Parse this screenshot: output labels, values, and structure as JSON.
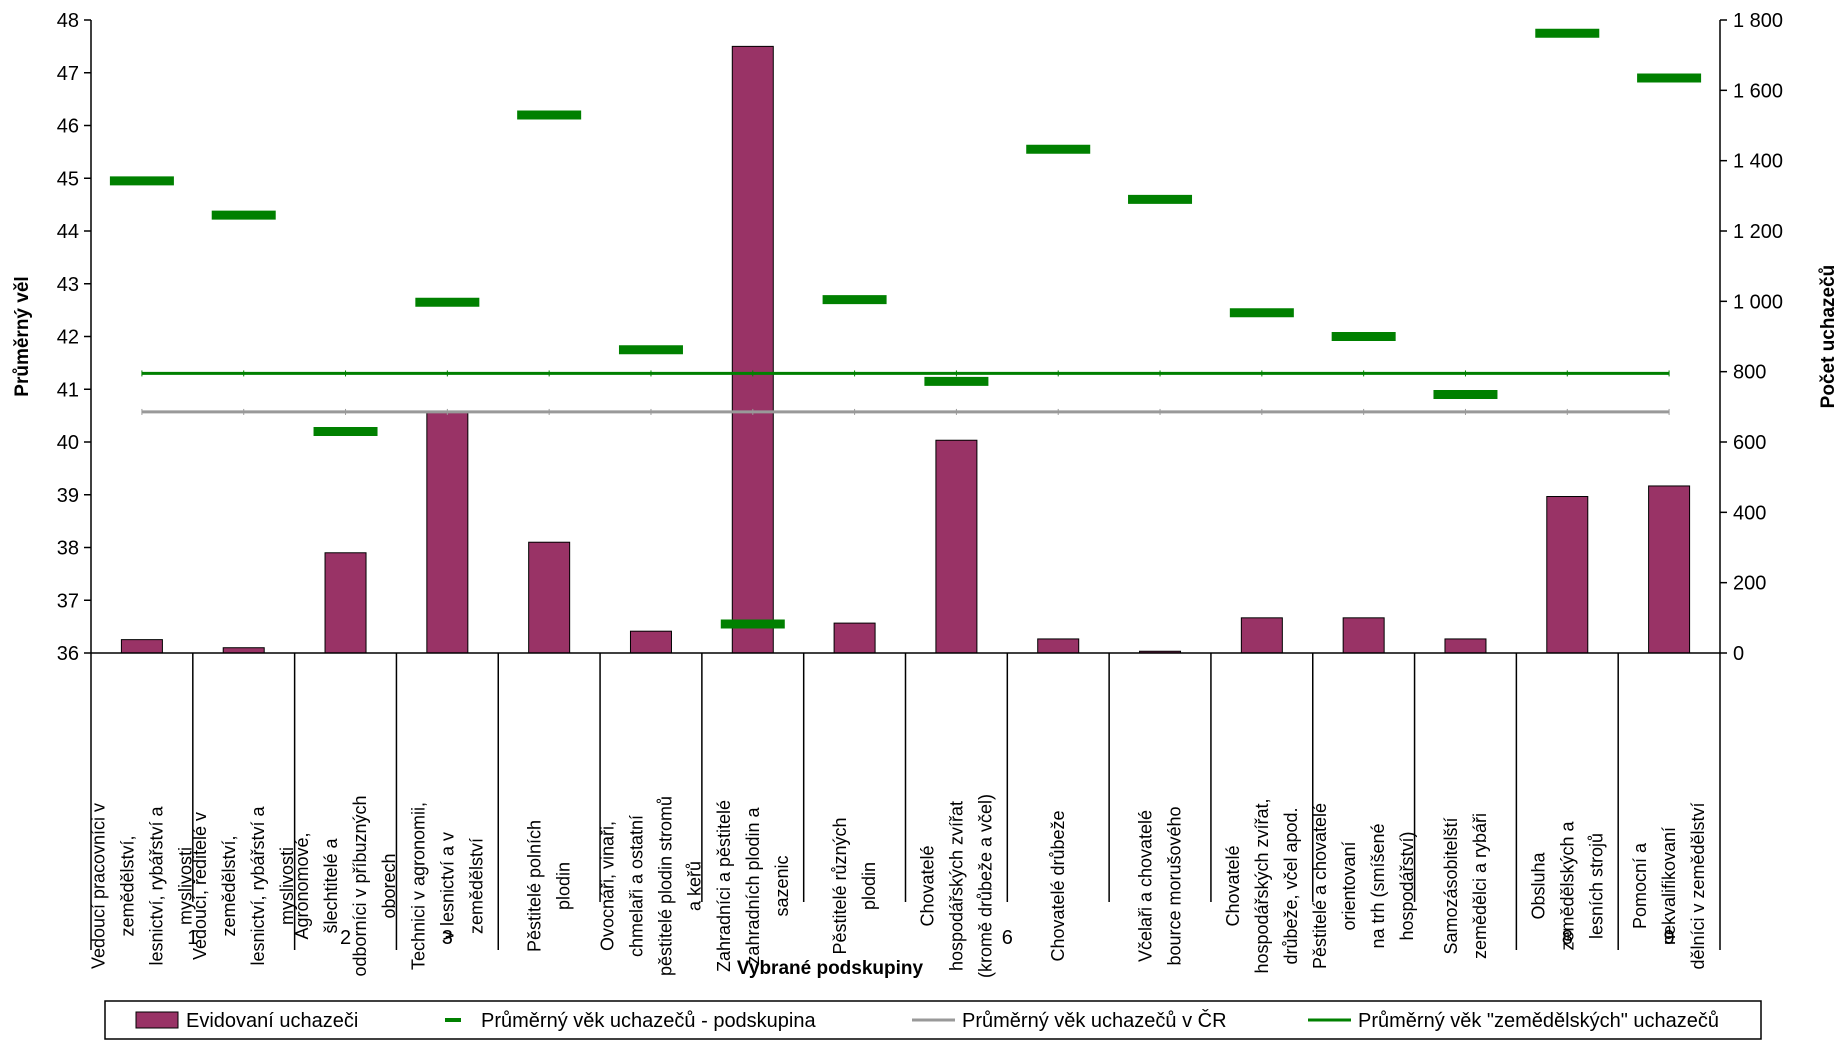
{
  "chart_data": {
    "type": "bar",
    "xlabel": "Vybrané podskupiny",
    "ylabel_left": "Průměrný věl",
    "ylabel_right": "Počet uchazečů",
    "ylim_left": [
      36,
      48
    ],
    "ylim_right": [
      0,
      1800
    ],
    "left_ticks": [
      "36",
      "37",
      "38",
      "39",
      "40",
      "41",
      "42",
      "43",
      "44",
      "45",
      "46",
      "47",
      "48"
    ],
    "right_ticks": [
      "0",
      "200",
      "400",
      "600",
      "800",
      "1 000",
      "1 200",
      "1 400",
      "1 600",
      "1 800"
    ],
    "categories": [
      [
        "Vedoucí pracovníci v",
        "zemědělství,",
        "lesnictví, rybářství a",
        "myslivosti"
      ],
      [
        "Vedoucí, ředitelé v",
        "zemědělství,",
        "lesnictví, rybářství a",
        "myslivosti"
      ],
      [
        "Agronomové,",
        "šlechtitelé a",
        "odborníci v příbuzných",
        "oborech"
      ],
      [
        "Technici v agronomii,",
        "v lesnictví a v",
        "zemědělství"
      ],
      [
        "Pěstitelé polních",
        "plodin"
      ],
      [
        "Ovocnáři, vinaři,",
        "chmelaři a ostatní",
        "pěstitelé plodin stromů",
        "a keřů"
      ],
      [
        "Zahradníci a pěstitelé",
        "zahradních plodin a",
        "sazenic"
      ],
      [
        "Pěstitelé různých",
        "plodin"
      ],
      [
        "Chovatelé",
        "hospodářských zvířat",
        "(kromě drůbeže a včel)"
      ],
      [
        "Chovatelé drůbeže"
      ],
      [
        "Včelaři a chovatelé",
        "bource morušového"
      ],
      [
        "Chovatelé",
        "hospodářských zvířat,",
        "drůbeže, včel apod."
      ],
      [
        "Pěstitelé a chovatelé",
        "orientovaní",
        "na trh (smíšené",
        "hospodářství)"
      ],
      [
        "Samozásobitelští",
        "zemědělci a rybáři"
      ],
      [
        "Obsluha",
        "zemědělských a",
        "lesních strojů"
      ],
      [
        "Pomocní a",
        "nekvalifikovaní",
        "dělníci v zemědělství"
      ]
    ],
    "groups": [
      {
        "label": "1",
        "start": 0,
        "end": 1
      },
      {
        "label": "2",
        "start": 2,
        "end": 2
      },
      {
        "label": "3",
        "start": 3,
        "end": 3
      },
      {
        "label": "6",
        "start": 4,
        "end": 13
      },
      {
        "label": "8",
        "start": 14,
        "end": 14
      },
      {
        "label": "9",
        "start": 15,
        "end": 15
      }
    ],
    "series": [
      {
        "name": "Evidovaní uchazeči",
        "kind": "bar",
        "axis": "right",
        "color": "#993366",
        "values": [
          38,
          15,
          285,
          685,
          315,
          62,
          1725,
          85,
          605,
          40,
          5,
          100,
          100,
          40,
          445,
          475
        ]
      },
      {
        "name": "Průměrný věk uchazečů - podskupina",
        "kind": "marker",
        "axis": "left",
        "color": "#008000",
        "values": [
          44.95,
          44.3,
          40.2,
          42.65,
          46.2,
          41.75,
          36.55,
          42.7,
          41.15,
          45.55,
          44.6,
          42.45,
          42.0,
          40.9,
          47.75,
          46.9
        ]
      },
      {
        "name": "Průměrný věk uchazečů v ČR",
        "kind": "line",
        "axis": "left",
        "color": "#999999",
        "value": 40.57
      },
      {
        "name": "Průměrný věk \"zemědělských\" uchazečů",
        "kind": "line",
        "axis": "left",
        "color": "#008000",
        "value": 41.3
      }
    ],
    "legend_position": "bottom",
    "grid": false
  }
}
